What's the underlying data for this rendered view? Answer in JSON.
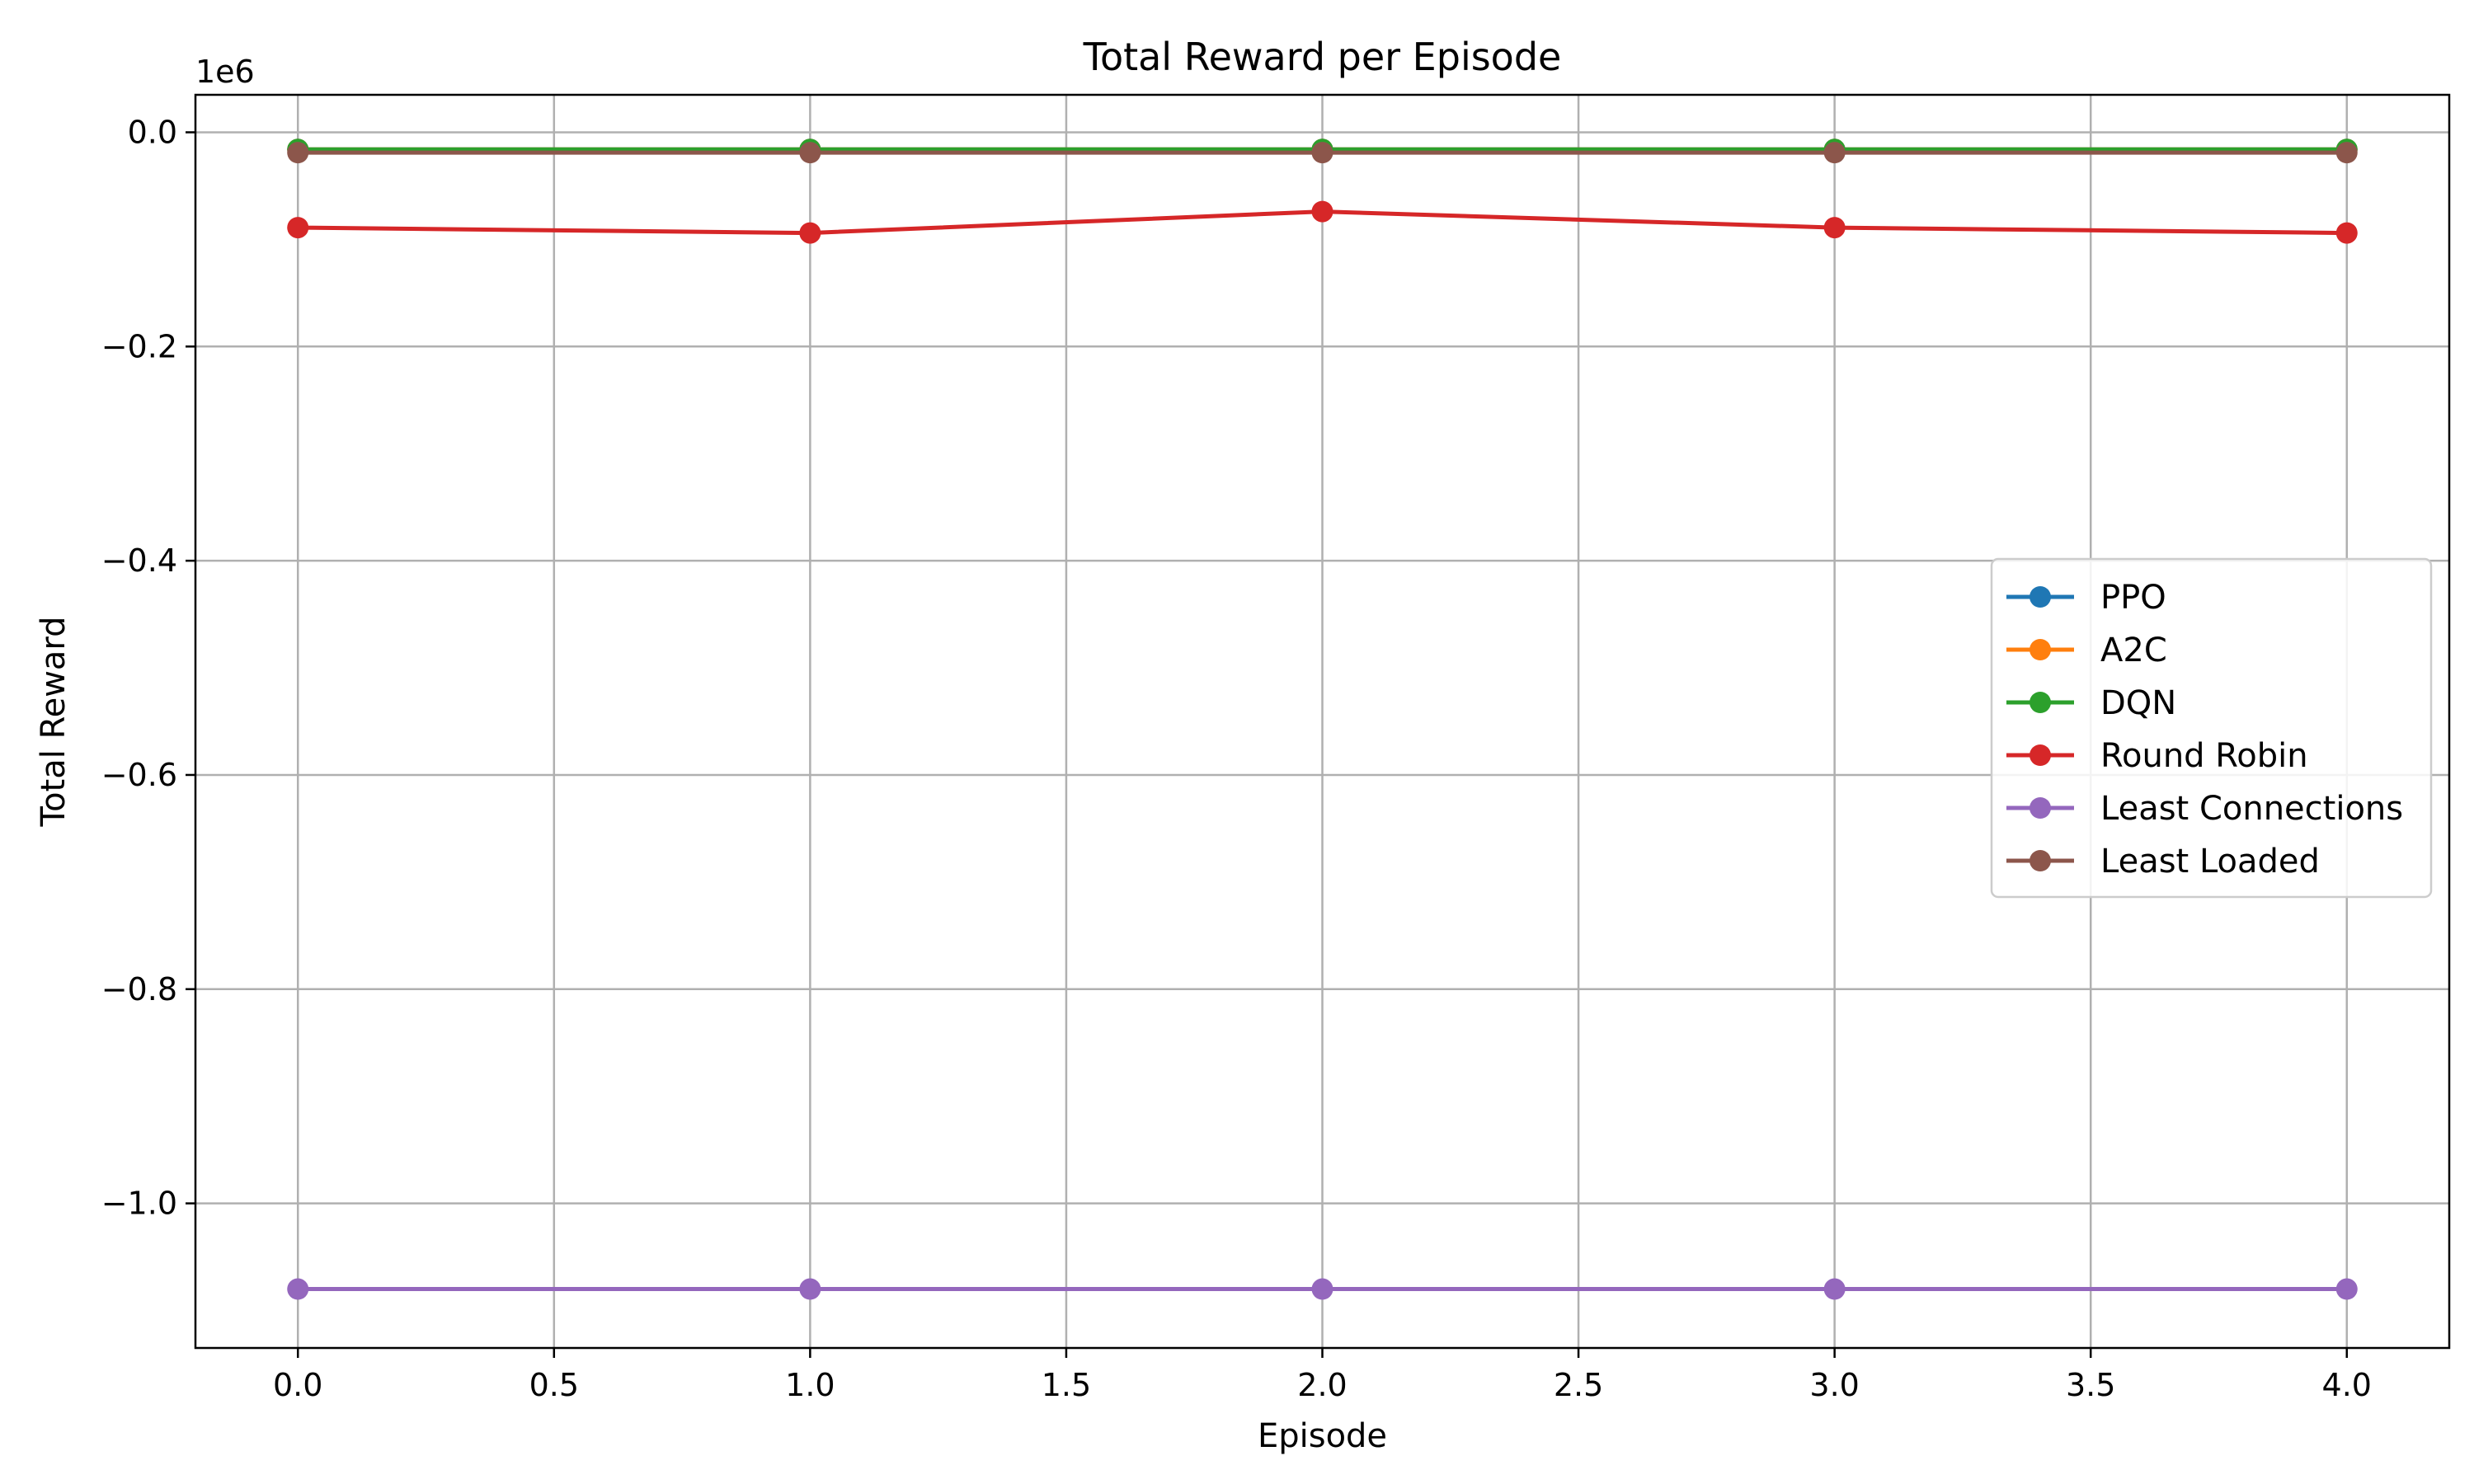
{
  "chart_data": {
    "type": "line",
    "title": "Total Reward per Episode",
    "xlabel": "Episode",
    "ylabel": "Total Reward",
    "y_offset_label": "1e6",
    "x": [
      0,
      1,
      2,
      3,
      4
    ],
    "xlim": [
      -0.2,
      4.2
    ],
    "ylim": [
      -1.135,
      0.035
    ],
    "x_ticks": [
      0.0,
      0.5,
      1.0,
      1.5,
      2.0,
      2.5,
      3.0,
      3.5,
      4.0
    ],
    "x_tick_labels": [
      "0.0",
      "0.5",
      "1.0",
      "1.5",
      "2.0",
      "2.5",
      "3.0",
      "3.5",
      "4.0"
    ],
    "y_ticks": [
      0.0,
      -0.2,
      -0.4,
      -0.6,
      -0.8,
      -1.0
    ],
    "y_tick_labels": [
      "0.0",
      "−0.2",
      "−0.4",
      "−0.6",
      "−0.8",
      "−1.0"
    ],
    "grid": true,
    "legend_position": "center-right",
    "series": [
      {
        "name": "PPO",
        "color": "#1f77b4",
        "values": [
          -0.016,
          -0.016,
          -0.016,
          -0.016,
          -0.016
        ]
      },
      {
        "name": "A2C",
        "color": "#ff7f0e",
        "values": [
          -0.016,
          -0.016,
          -0.016,
          -0.016,
          -0.016
        ]
      },
      {
        "name": "DQN",
        "color": "#2ca02c",
        "values": [
          -0.016,
          -0.016,
          -0.016,
          -0.016,
          -0.016
        ]
      },
      {
        "name": "Round Robin",
        "color": "#d62728",
        "values": [
          -0.089,
          -0.094,
          -0.074,
          -0.089,
          -0.094
        ]
      },
      {
        "name": "Least Connections",
        "color": "#9467bd",
        "values": [
          -1.08,
          -1.08,
          -1.08,
          -1.08,
          -1.08
        ]
      },
      {
        "name": "Least Loaded",
        "color": "#8c564b",
        "values": [
          -0.019,
          -0.019,
          -0.019,
          -0.019,
          -0.019
        ]
      }
    ]
  }
}
